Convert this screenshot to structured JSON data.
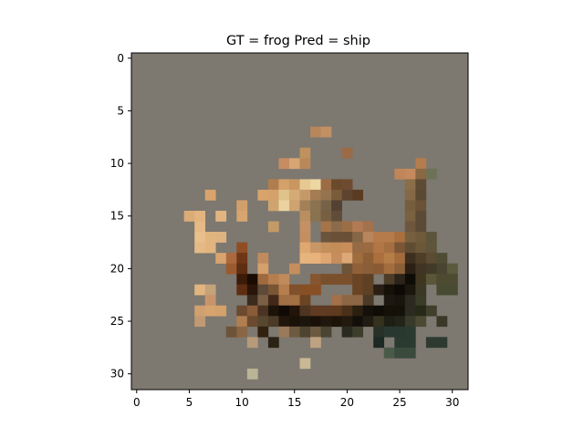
{
  "figure": {
    "title": "GT = frog Pred = ship",
    "background": "#ffffff"
  },
  "image": {
    "grid_size": 32,
    "background_color": "#7d7870",
    "x_ticks": [
      "0",
      "5",
      "10",
      "15",
      "20",
      "25",
      "30"
    ],
    "y_ticks": [
      "0",
      "5",
      "10",
      "15",
      "20",
      "25",
      "30"
    ],
    "x_tick_values": [
      0,
      5,
      10,
      15,
      20,
      25,
      30
    ],
    "y_tick_values": [
      0,
      5,
      10,
      15,
      20,
      25,
      30
    ],
    "pixels": [
      [
        17,
        7,
        "#b7865a"
      ],
      [
        18,
        7,
        "#c19063"
      ],
      [
        14,
        10,
        "#c58d61"
      ],
      [
        15,
        10,
        "#d7a474"
      ],
      [
        16,
        9,
        "#be915e"
      ],
      [
        16,
        10,
        "#b9885a"
      ],
      [
        20,
        9,
        "#9a6b46"
      ],
      [
        25,
        11,
        "#c08659"
      ],
      [
        26,
        11,
        "#c48a5d"
      ],
      [
        27,
        10,
        "#b57d4e"
      ],
      [
        27,
        11,
        "#8a6844"
      ],
      [
        28,
        11,
        "#6e7255"
      ],
      [
        13,
        12,
        "#b07e4e"
      ],
      [
        14,
        12,
        "#d3a169"
      ],
      [
        15,
        12,
        "#c99660"
      ],
      [
        16,
        12,
        "#e6c892"
      ],
      [
        17,
        12,
        "#ecd7a3"
      ],
      [
        18,
        12,
        "#9b6c45"
      ],
      [
        19,
        12,
        "#6b4a2c"
      ],
      [
        20,
        12,
        "#6e4b30"
      ],
      [
        26,
        12,
        "#8b6e48"
      ],
      [
        27,
        12,
        "#5e4b33"
      ],
      [
        7,
        13,
        "#d8a46c"
      ],
      [
        12,
        13,
        "#d8a46c"
      ],
      [
        13,
        13,
        "#d3a169"
      ],
      [
        14,
        13,
        "#dfc38a"
      ],
      [
        15,
        13,
        "#d4aa77"
      ],
      [
        16,
        13,
        "#c59a68"
      ],
      [
        17,
        13,
        "#a57c53"
      ],
      [
        18,
        13,
        "#94734e"
      ],
      [
        19,
        13,
        "#7a5c3b"
      ],
      [
        20,
        13,
        "#5e4430"
      ],
      [
        21,
        13,
        "#5a3b22"
      ],
      [
        26,
        13,
        "#866846"
      ],
      [
        27,
        13,
        "#5b4a33"
      ],
      [
        10,
        14,
        "#d0a06c"
      ],
      [
        13,
        14,
        "#cfa46f"
      ],
      [
        14,
        14,
        "#ebd3a0"
      ],
      [
        15,
        14,
        "#cfa370"
      ],
      [
        16,
        14,
        "#a28058"
      ],
      [
        17,
        14,
        "#8b7350"
      ],
      [
        18,
        14,
        "#766248"
      ],
      [
        19,
        14,
        "#534132"
      ],
      [
        26,
        14,
        "#755d3e"
      ],
      [
        27,
        14,
        "#6b5236"
      ],
      [
        5,
        15,
        "#dcac78"
      ],
      [
        6,
        15,
        "#e2b47f"
      ],
      [
        8,
        15,
        "#e2b47f"
      ],
      [
        10,
        15,
        "#d6a570"
      ],
      [
        16,
        15,
        "#b98f60"
      ],
      [
        17,
        15,
        "#8a7150"
      ],
      [
        18,
        15,
        "#765f43"
      ],
      [
        19,
        15,
        "#604c37"
      ],
      [
        26,
        15,
        "#7a613f"
      ],
      [
        27,
        15,
        "#5c4a35"
      ],
      [
        6,
        16,
        "#e5ba86"
      ],
      [
        13,
        16,
        "#c49a67"
      ],
      [
        16,
        16,
        "#c59064"
      ],
      [
        18,
        16,
        "#a57448"
      ],
      [
        19,
        16,
        "#8b6b4a"
      ],
      [
        20,
        16,
        "#9c6e45"
      ],
      [
        21,
        16,
        "#b17a52"
      ],
      [
        22,
        16,
        "#a3714b"
      ],
      [
        26,
        16,
        "#6d563d"
      ],
      [
        27,
        16,
        "#5a4a36"
      ],
      [
        6,
        17,
        "#e9c08b"
      ],
      [
        7,
        17,
        "#e2b57f"
      ],
      [
        8,
        17,
        "#dfb380"
      ],
      [
        16,
        17,
        "#c48e61"
      ],
      [
        18,
        17,
        "#6b543c"
      ],
      [
        19,
        17,
        "#6b5038"
      ],
      [
        20,
        17,
        "#6b5038"
      ],
      [
        21,
        17,
        "#856745"
      ],
      [
        22,
        17,
        "#b9855a"
      ],
      [
        23,
        17,
        "#b57b4a"
      ],
      [
        24,
        17,
        "#b57b4a"
      ],
      [
        25,
        17,
        "#a96f3f"
      ],
      [
        26,
        17,
        "#76603f"
      ],
      [
        27,
        17,
        "#6f5a3a"
      ],
      [
        28,
        17,
        "#5d553b"
      ],
      [
        6,
        18,
        "#e5ba86"
      ],
      [
        7,
        18,
        "#e2b57f"
      ],
      [
        10,
        18,
        "#8e4d23"
      ],
      [
        16,
        18,
        "#e0a871"
      ],
      [
        17,
        18,
        "#c99766"
      ],
      [
        18,
        18,
        "#c48f5a"
      ],
      [
        19,
        18,
        "#c38c58"
      ],
      [
        20,
        18,
        "#c98d5a"
      ],
      [
        21,
        18,
        "#966a44"
      ],
      [
        22,
        18,
        "#9b6a3f"
      ],
      [
        23,
        18,
        "#b07645"
      ],
      [
        24,
        18,
        "#a56e41"
      ],
      [
        25,
        18,
        "#7a5636"
      ],
      [
        26,
        18,
        "#5f4c32"
      ],
      [
        27,
        18,
        "#6a5638"
      ],
      [
        28,
        18,
        "#5f553b"
      ],
      [
        8,
        19,
        "#d7a46f"
      ],
      [
        9,
        19,
        "#aa6a3e"
      ],
      [
        10,
        19,
        "#6e3614"
      ],
      [
        12,
        19,
        "#c18b5d"
      ],
      [
        16,
        19,
        "#e7b47d"
      ],
      [
        17,
        19,
        "#e9b27b"
      ],
      [
        18,
        19,
        "#dfa671"
      ],
      [
        19,
        19,
        "#c58e5c"
      ],
      [
        20,
        19,
        "#dca877"
      ],
      [
        21,
        19,
        "#a06d3f"
      ],
      [
        22,
        19,
        "#8e5e35"
      ],
      [
        23,
        19,
        "#ab6f3d"
      ],
      [
        24,
        19,
        "#b57d48"
      ],
      [
        25,
        19,
        "#a46c3c"
      ],
      [
        26,
        19,
        "#3d2f1e"
      ],
      [
        27,
        19,
        "#4e3d27"
      ],
      [
        28,
        19,
        "#5b4b32"
      ],
      [
        29,
        19,
        "#4f4c34"
      ],
      [
        9,
        20,
        "#9c5a2f"
      ],
      [
        10,
        20,
        "#5e2e12"
      ],
      [
        12,
        20,
        "#d5a06b"
      ],
      [
        15,
        20,
        "#c58e5c"
      ],
      [
        20,
        20,
        "#6d5438"
      ],
      [
        21,
        20,
        "#916038"
      ],
      [
        22,
        20,
        "#8a5f38"
      ],
      [
        23,
        20,
        "#8a5a33"
      ],
      [
        24,
        20,
        "#a46d3f"
      ],
      [
        25,
        20,
        "#8b6038"
      ],
      [
        26,
        20,
        "#2c2014"
      ],
      [
        27,
        20,
        "#413422"
      ],
      [
        28,
        20,
        "#413a28"
      ],
      [
        29,
        20,
        "#48442f"
      ],
      [
        30,
        20,
        "#5a5a3c"
      ],
      [
        10,
        21,
        "#3b1c09"
      ],
      [
        11,
        21,
        "#1a0c03"
      ],
      [
        12,
        21,
        "#9f6a3e"
      ],
      [
        13,
        21,
        "#b57e4e"
      ],
      [
        14,
        21,
        "#c08a5b"
      ],
      [
        17,
        21,
        "#85562f"
      ],
      [
        18,
        21,
        "#7a4f2c"
      ],
      [
        19,
        21,
        "#7a4f2c"
      ],
      [
        20,
        21,
        "#7a4f2c"
      ],
      [
        21,
        21,
        "#6a4424"
      ],
      [
        22,
        21,
        "#5e4024"
      ],
      [
        24,
        21,
        "#4c3c28"
      ],
      [
        25,
        21,
        "#2c2419"
      ],
      [
        26,
        21,
        "#0f0c06"
      ],
      [
        27,
        21,
        "#403620"
      ],
      [
        28,
        21,
        "#5a5639"
      ],
      [
        29,
        21,
        "#4d4a32"
      ],
      [
        30,
        21,
        "#4d4a32"
      ],
      [
        6,
        22,
        "#e2b57f"
      ],
      [
        7,
        22,
        "#c4a27a"
      ],
      [
        10,
        22,
        "#5e2e12"
      ],
      [
        11,
        22,
        "#2a1508"
      ],
      [
        12,
        22,
        "#5e4a38"
      ],
      [
        13,
        22,
        "#7a5534"
      ],
      [
        14,
        22,
        "#b57e4e"
      ],
      [
        15,
        22,
        "#80512c"
      ],
      [
        16,
        22,
        "#884f25"
      ],
      [
        17,
        22,
        "#884f25"
      ],
      [
        21,
        22,
        "#6a4424"
      ],
      [
        22,
        22,
        "#5e4024"
      ],
      [
        23,
        22,
        "#2a1f14"
      ],
      [
        24,
        22,
        "#151108"
      ],
      [
        25,
        22,
        "#0d0a05"
      ],
      [
        26,
        22,
        "#1b170e"
      ],
      [
        27,
        22,
        "#3b3826"
      ],
      [
        29,
        22,
        "#494a32"
      ],
      [
        30,
        22,
        "#494a32"
      ],
      [
        7,
        23,
        "#c8956b"
      ],
      [
        11,
        23,
        "#3b2b1d"
      ],
      [
        12,
        23,
        "#7b6046"
      ],
      [
        13,
        23,
        "#43281a"
      ],
      [
        14,
        23,
        "#a06f44"
      ],
      [
        15,
        23,
        "#a27042"
      ],
      [
        16,
        23,
        "#6b4424"
      ],
      [
        19,
        23,
        "#a47049"
      ],
      [
        20,
        23,
        "#8d6644"
      ],
      [
        21,
        23,
        "#8d6644"
      ],
      [
        22,
        23,
        "#4a3a28"
      ],
      [
        24,
        23,
        "#1d1811"
      ],
      [
        25,
        23,
        "#18150d"
      ],
      [
        26,
        23,
        "#2a2a1e"
      ],
      [
        27,
        23,
        "#3b3b2a"
      ],
      [
        6,
        24,
        "#d0a071"
      ],
      [
        7,
        24,
        "#d7a46f"
      ],
      [
        8,
        24,
        "#d4a06b"
      ],
      [
        10,
        24,
        "#6b4a2f"
      ],
      [
        11,
        24,
        "#8a5b38"
      ],
      [
        12,
        24,
        "#4a3322"
      ],
      [
        13,
        24,
        "#1d1309"
      ],
      [
        14,
        24,
        "#0f0a05"
      ],
      [
        15,
        24,
        "#211408"
      ],
      [
        16,
        24,
        "#4e3522"
      ],
      [
        17,
        24,
        "#5f3b22"
      ],
      [
        18,
        24,
        "#5f3b22"
      ],
      [
        19,
        24,
        "#5e3a1e"
      ],
      [
        20,
        24,
        "#4b3019"
      ],
      [
        21,
        24,
        "#2a1f10"
      ],
      [
        22,
        24,
        "#14100a"
      ],
      [
        23,
        24,
        "#0f0c08"
      ],
      [
        24,
        24,
        "#141108"
      ],
      [
        25,
        24,
        "#141108"
      ],
      [
        26,
        24,
        "#2b2b20"
      ],
      [
        27,
        24,
        "#262818"
      ],
      [
        28,
        24,
        "#3f3f2c"
      ],
      [
        6,
        25,
        "#c19a74"
      ],
      [
        10,
        25,
        "#b07e4f"
      ],
      [
        11,
        25,
        "#6b4a2f"
      ],
      [
        12,
        25,
        "#574630"
      ],
      [
        13,
        25,
        "#4b3a26"
      ],
      [
        14,
        25,
        "#21160b"
      ],
      [
        15,
        25,
        "#1a1108"
      ],
      [
        16,
        25,
        "#1c150b"
      ],
      [
        17,
        25,
        "#191009"
      ],
      [
        18,
        25,
        "#22170c"
      ],
      [
        19,
        25,
        "#1c1409"
      ],
      [
        20,
        25,
        "#22190f"
      ],
      [
        21,
        25,
        "#120e09"
      ],
      [
        22,
        25,
        "#211c12"
      ],
      [
        23,
        25,
        "#34321f"
      ],
      [
        24,
        25,
        "#1e1e14"
      ],
      [
        25,
        25,
        "#232418"
      ],
      [
        26,
        25,
        "#3a3a2a"
      ],
      [
        27,
        25,
        "#4c4a32"
      ],
      [
        29,
        25,
        "#3a3928"
      ],
      [
        9,
        26,
        "#6d5338"
      ],
      [
        10,
        26,
        "#8a6644"
      ],
      [
        12,
        26,
        "#33210f"
      ],
      [
        14,
        26,
        "#9a7a58"
      ],
      [
        15,
        26,
        "#6e5a40"
      ],
      [
        16,
        26,
        "#4e4430"
      ],
      [
        17,
        26,
        "#6b5a40"
      ],
      [
        18,
        26,
        "#4a4432"
      ],
      [
        20,
        26,
        "#2a2a20"
      ],
      [
        21,
        26,
        "#3d3d2b"
      ],
      [
        23,
        26,
        "#283028"
      ],
      [
        24,
        26,
        "#283830"
      ],
      [
        25,
        26,
        "#283830"
      ],
      [
        26,
        26,
        "#2a3a30"
      ],
      [
        11,
        27,
        "#b79a7a"
      ],
      [
        13,
        27,
        "#2a2214"
      ],
      [
        17,
        27,
        "#bfa282"
      ],
      [
        23,
        27,
        "#1d2a24"
      ],
      [
        25,
        27,
        "#2a3a30"
      ],
      [
        26,
        27,
        "#2a3a30"
      ],
      [
        28,
        27,
        "#2e3a30"
      ],
      [
        29,
        27,
        "#2e3a30"
      ],
      [
        24,
        28,
        "#4a5a48"
      ],
      [
        25,
        28,
        "#3a4a3c"
      ],
      [
        26,
        28,
        "#3a4a3c"
      ],
      [
        16,
        29,
        "#c8b896"
      ],
      [
        11,
        30,
        "#b9b496"
      ]
    ]
  }
}
